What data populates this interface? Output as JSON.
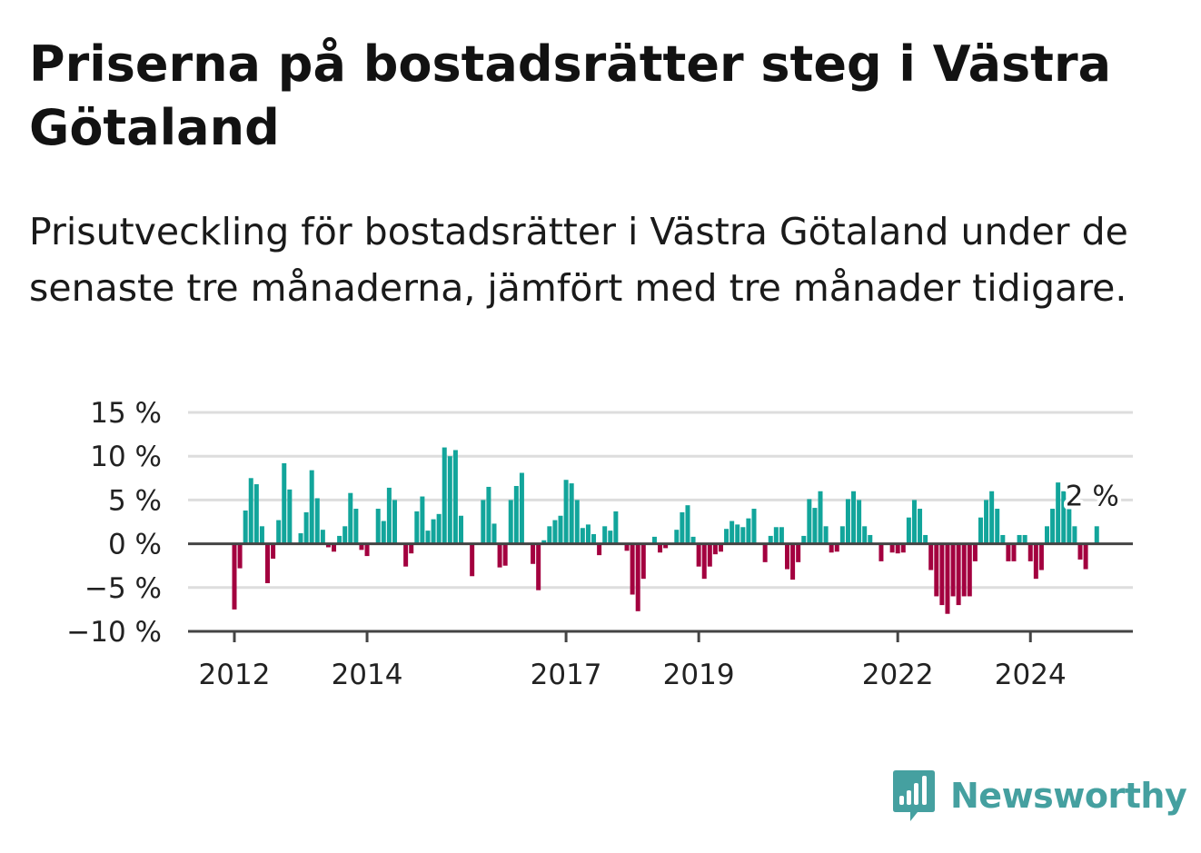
{
  "header": {
    "title": "Priserna på bostadsrätter steg i Västra Götaland",
    "subtitle": "Prisutveckling för bostadsrätter i Västra Götaland under de senaste tre månaderna, jämfört med tre månader tidigare."
  },
  "brand": {
    "name": "Newsworthy",
    "icon": "newsworthy-logo-icon",
    "color": "#45a0a0"
  },
  "colors": {
    "positive": "#12a59b",
    "negative": "#a3003f",
    "zero_line": "#444444",
    "grid": "#dddddd"
  },
  "chart_data": {
    "type": "bar",
    "title": "",
    "xlabel": "",
    "ylabel": "",
    "ylim": [
      -10,
      15
    ],
    "y_ticks": [
      15,
      10,
      5,
      0,
      -5,
      -10
    ],
    "y_tick_labels": [
      "15 %",
      "10 %",
      "5 %",
      "0 %",
      "−5 %",
      "−10 %"
    ],
    "x_tick_labels": [
      "2012",
      "2014",
      "2017",
      "2019",
      "2022",
      "2024"
    ],
    "grid": true,
    "start_period": "2012-01",
    "frequency": "monthly",
    "last_value_label": "2 %",
    "series": [
      {
        "values": [
          -7.5,
          -2.8,
          3.8,
          7.5,
          6.8,
          2.0,
          -4.5,
          -1.7,
          2.7,
          9.2,
          6.2,
          0,
          1.2,
          3.6,
          8.4,
          5.2,
          1.6,
          -0.4,
          -0.9,
          0.9,
          2.0,
          5.8,
          4.0,
          -0.7,
          -1.4,
          0,
          4.0,
          2.6,
          6.4,
          5.0,
          0,
          -2.6,
          -1.1,
          3.7,
          5.4,
          1.5,
          2.8,
          3.4,
          11.0,
          10.0,
          10.7,
          3.2,
          0,
          -3.7,
          0,
          5.0,
          6.5,
          2.3,
          -2.7,
          -2.5,
          5.0,
          6.6,
          8.1,
          0,
          -2.3,
          -5.3,
          0.4,
          2.0,
          2.7,
          3.2,
          7.3,
          6.9,
          5.0,
          1.8,
          2.2,
          1.1,
          -1.3,
          2.0,
          1.5,
          3.7,
          0,
          -0.8,
          -5.8,
          -7.7,
          -4.0,
          0,
          0.8,
          -1.0,
          -0.5,
          0,
          1.6,
          3.6,
          4.4,
          0.8,
          -2.6,
          -4.0,
          -2.6,
          -1.2,
          -0.9,
          1.7,
          2.6,
          2.2,
          1.9,
          2.9,
          4.0,
          0,
          -2.1,
          0.9,
          1.9,
          1.9,
          -2.9,
          -4.1,
          -2.1,
          0.9,
          5.1,
          4.1,
          6.0,
          2.0,
          -1.0,
          -0.9,
          2.0,
          5.1,
          6.0,
          5.0,
          2.0,
          1.0,
          0,
          -2.0,
          0,
          -1.0,
          -1.1,
          -1.0,
          3.0,
          5.0,
          4.0,
          1.0,
          -3.0,
          -6.0,
          -7.0,
          -8.0,
          -6.0,
          -7.0,
          -6.0,
          -6.0,
          -2.0,
          3.0,
          5.0,
          6.0,
          4.0,
          1.0,
          -2.0,
          -2.0,
          1.0,
          1.0,
          -2.0,
          -4.0,
          -3.0,
          2.0,
          4.0,
          7.0,
          6.0,
          4.0,
          2.0,
          -1.8,
          -2.9,
          0,
          2.0
        ]
      }
    ]
  }
}
